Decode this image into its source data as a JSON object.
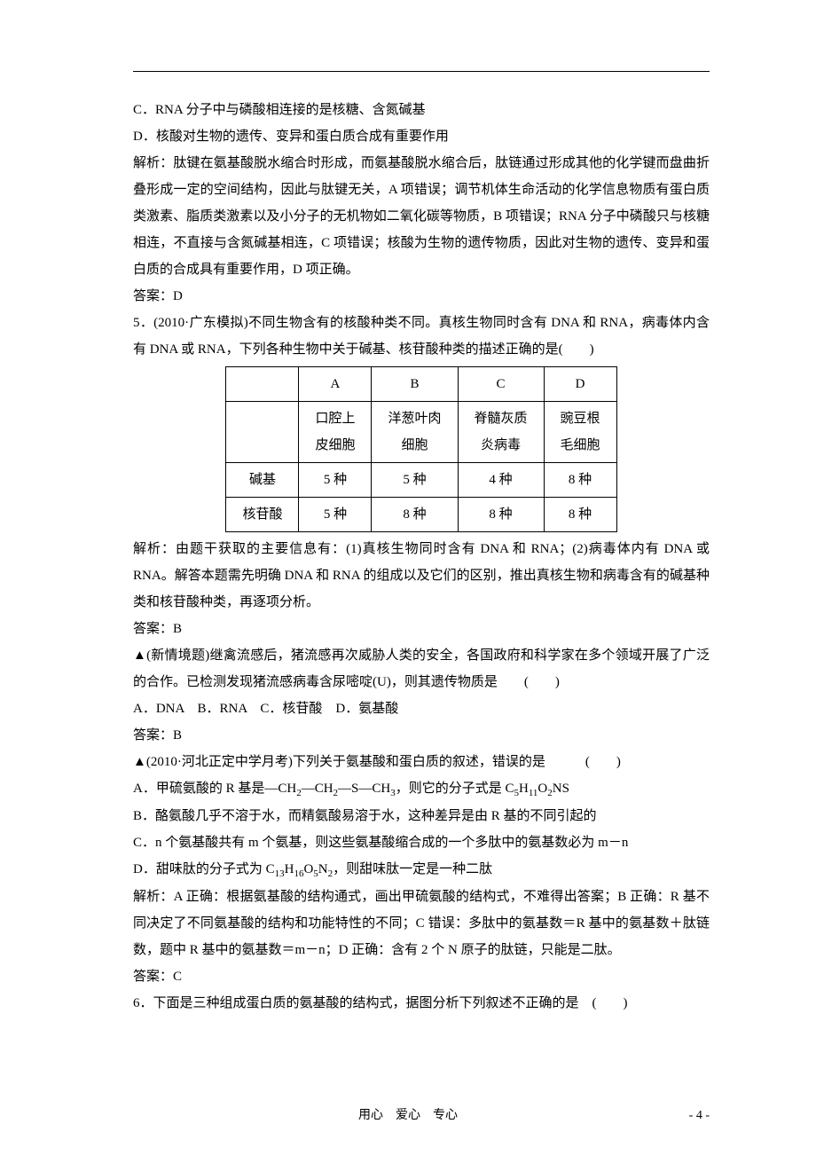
{
  "optC": "C．RNA 分子中与磷酸相连接的是核糖、含氮碱基",
  "optD": "D．核酸对生物的遗传、变异和蛋白质合成有重要作用",
  "expl4": "解析：肽键在氨基酸脱水缩合时形成，而氨基酸脱水缩合后，肽链通过形成其他的化学键而盘曲折叠形成一定的空间结构，因此与肽键无关，A 项错误；调节机体生命活动的化学信息物质有蛋白质类激素、脂质类激素以及小分子的无机物如二氧化碳等物质，B 项错误；RNA 分子中磷酸只与核糖相连，不直接与含氮碱基相连，C 项错误；核酸为生物的遗传物质，因此对生物的遗传、变异和蛋白质的合成具有重要作用，D 项正确。",
  "ans4": "答案：D",
  "q5": "5．(2010·广东模拟)不同生物含有的核酸种类不同。真核生物同时含有 DNA 和 RNA，病毒体内含有 DNA 或 RNA，下列各种生物中关于碱基、核苷酸种类的描述正确的是(　　)",
  "table": {
    "headers": [
      "",
      "A",
      "B",
      "C",
      "D"
    ],
    "row1": [
      "",
      "口腔上皮细胞",
      "洋葱叶肉细胞",
      "脊髓灰质炎病毒",
      "豌豆根毛细胞"
    ],
    "row2": [
      "碱基",
      "5 种",
      "5 种",
      "4 种",
      "8 种"
    ],
    "row3": [
      "核苷酸",
      "5 种",
      "8 种",
      "8 种",
      "8 种"
    ]
  },
  "expl5": "解析：由题干获取的主要信息有：(1)真核生物同时含有 DNA 和 RNA；(2)病毒体内有 DNA 或 RNA。解答本题需先明确 DNA 和 RNA 的组成以及它们的区别，推出真核生物和病毒含有的碱基种类和核苷酸种类，再逐项分析。",
  "ans5": "答案：B",
  "qA": "▲(新情境题)继禽流感后，猪流感再次威胁人类的安全，各国政府和科学家在多个领域开展了广泛的合作。已检测发现猪流感病毒含尿嘧啶(U)，则其遗传物质是　　(　　)",
  "optsA": "A．DNA　B．RNA　C．核苷酸　D．氨基酸",
  "ansA": "答案：B",
  "qB": "▲(2010·河北正定中学月考)下列关于氨基酸和蛋白质的叙述，错误的是　　　(　　)",
  "qB_A_pre": "A．甲硫氨酸的 R 基是—CH",
  "qB_A_mid1": "—CH",
  "qB_A_mid2": "—S—CH",
  "qB_A_mid3": "，则它的分子式是 C",
  "qB_A_mid4": "H",
  "qB_A_mid5": "O",
  "qB_A_end": "NS",
  "qB_B": "B．酪氨酸几乎不溶于水，而精氨酸易溶于水，这种差异是由 R 基的不同引起的",
  "qB_C": "C．n 个氨基酸共有 m 个氨基，则这些氨基酸缩合成的一个多肽中的氨基数必为 m－n",
  "qB_D_pre": "D．甜味肽的分子式为 C",
  "qB_D_mid1": "H",
  "qB_D_mid2": "O",
  "qB_D_mid3": "N",
  "qB_D_end": "，则甜味肽一定是一种二肽",
  "explB": "解析：A 正确：根据氨基酸的结构通式，画出甲硫氨酸的结构式，不难得出答案；B 正确：R 基不同决定了不同氨基酸的结构和功能特性的不同；C 错误：多肽中的氨基数＝R 基中的氨基数＋肽链数，题中 R 基中的氨基数＝m－n；D 正确：含有 2 个 N 原子的肽链，只能是二肽。",
  "ansB": "答案：C",
  "q6": "6．下面是三种组成蛋白质的氨基酸的结构式，据图分析下列叙述不正确的是　(　　)",
  "footer_text": "用心　爱心　专心",
  "page_num": "- 4 -"
}
